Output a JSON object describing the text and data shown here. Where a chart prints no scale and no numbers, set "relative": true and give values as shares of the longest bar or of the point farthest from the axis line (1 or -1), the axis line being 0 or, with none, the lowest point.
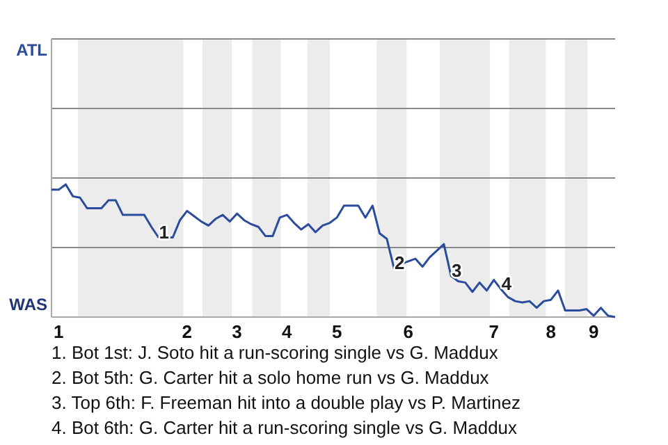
{
  "chart_data": {
    "type": "line",
    "relative": true,
    "categories": [
      null,
      "1",
      null,
      null,
      null,
      null,
      null,
      null,
      null,
      null,
      null,
      null,
      null,
      null,
      null,
      null,
      null,
      null,
      null,
      "2",
      null,
      null,
      null,
      null,
      null,
      null,
      "3",
      null,
      null,
      null,
      null,
      null,
      null,
      "4",
      null,
      null,
      null,
      null,
      null,
      null,
      "5",
      null,
      null,
      null,
      null,
      null,
      null,
      null,
      null,
      null,
      "6",
      null,
      null,
      null,
      null,
      null,
      null,
      null,
      null,
      null,
      null,
      null,
      "7",
      null,
      null,
      null,
      null,
      null,
      null,
      null,
      "8",
      null,
      null,
      null,
      null,
      null,
      "9",
      null,
      null,
      null
    ],
    "marker": "none",
    "line_style": "solid",
    "ref_lines": [
      {
        "axis": "y",
        "value": 0.524,
        "color": "#888888"
      },
      {
        "axis": "y",
        "value": 1.048,
        "color": "#888888"
      },
      {
        "axis": "y",
        "value": 1.572,
        "color": "#888888"
      },
      {
        "axis": "y",
        "value": 2.096,
        "color": "#888888"
      }
    ],
    "series": [
      {
        "color": "#2a4c9c",
        "values": [
          0.96,
          0.96,
          1,
          0.91,
          0.9,
          0.82,
          0.82,
          0.82,
          0.88,
          0.88,
          0.77,
          0.77,
          0.77,
          0.77,
          0.68,
          0.6,
          0.6,
          0.6,
          0.73,
          0.8,
          0.76,
          0.72,
          0.69,
          0.74,
          0.77,
          0.72,
          0.78,
          0.73,
          0.7,
          0.68,
          0.61,
          0.61,
          0.75,
          0.77,
          0.71,
          0.66,
          0.7,
          0.64,
          0.69,
          0.71,
          0.75,
          0.84,
          0.84,
          0.84,
          0.75,
          0.84,
          0.63,
          0.59,
          0.37,
          0.4,
          0.42,
          0.44,
          0.38,
          0.45,
          0.5,
          0.55,
          0.31,
          0.27,
          0.26,
          0.19,
          0.26,
          0.2,
          0.28,
          0.21,
          0.15,
          0.12,
          0.11,
          0.12,
          0.07,
          0.12,
          0.13,
          0.2,
          0.05,
          0.05,
          0.05,
          0.06,
          0.01,
          0.07,
          0.01,
          0
        ]
      }
    ],
    "annotations": [
      "ATL",
      "WAS",
      {
        "text": "1",
        "y": 0.6
      },
      {
        "text": "2",
        "y": 0.37
      },
      {
        "text": "3",
        "y": 0.31
      },
      {
        "text": "4",
        "y": 0.21
      },
      "1. Bot 1st: J. Soto hit a run-scoring single vs G. Maddux",
      "2. Bot 5th: G. Carter hit a solo home run vs G. Maddux",
      "3. Top 6th: F. Freeman hit into a double play vs P. Martinez",
      "4. Bot 6th: G. Carter hit a run-scoring single vs G. Maddux"
    ]
  }
}
